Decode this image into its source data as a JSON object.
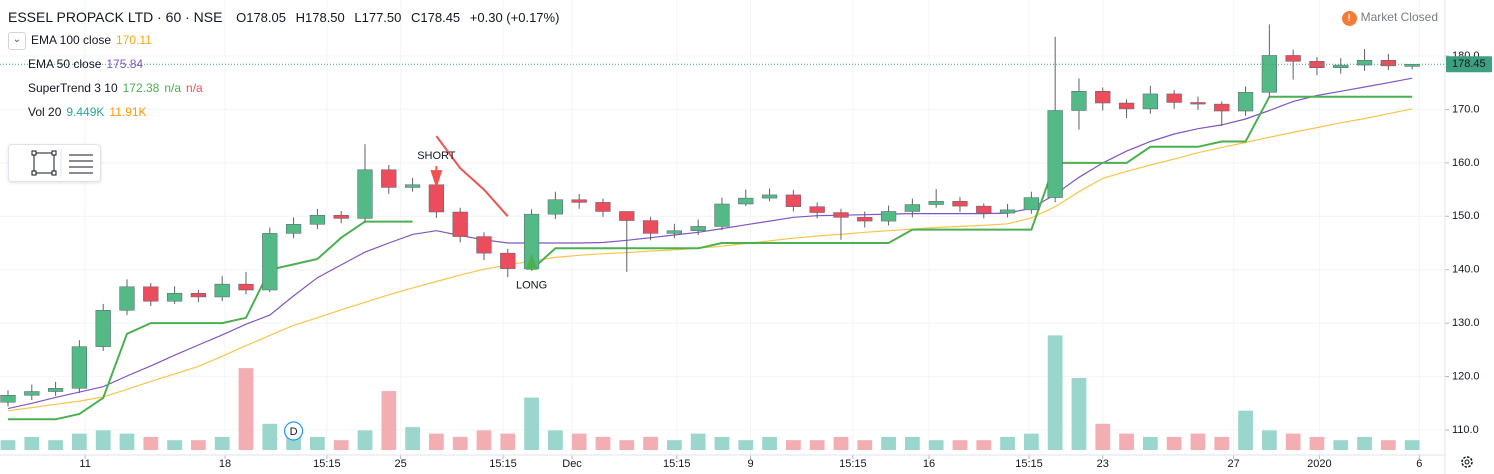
{
  "header": {
    "symbol": "ESSEL PROPACK LTD · 60 · NSE",
    "ohlc": [
      "O178.05",
      "H178.50",
      "L177.50",
      "C178.45"
    ],
    "change": "+0.30 (+0.17%)",
    "status": "Market Closed",
    "status_icon": "!"
  },
  "chart_data": {
    "type": "candlestick",
    "open": [
      115.2,
      116.5,
      117.2,
      117.8,
      125.6,
      132.4,
      136.8,
      134.1,
      135.6,
      134.9,
      137.3,
      136.2,
      146.8,
      148.5,
      150.2,
      149.6,
      158.7,
      155.4,
      155.9,
      150.8,
      146.2,
      143.1,
      140.2,
      150.4,
      153.1,
      152.6,
      150.9,
      149.2,
      146.8,
      147.3,
      148.1,
      152.3,
      153.4,
      154.0,
      151.8,
      150.7,
      149.8,
      149.1,
      150.9,
      152.2,
      152.8,
      151.9,
      150.6,
      151.2,
      153.5,
      169.8,
      173.4,
      171.2,
      170.1,
      172.9,
      171.3,
      171.0,
      169.7,
      173.2,
      180.1,
      179.0,
      177.8,
      178.3,
      179.2,
      178.05
    ],
    "high": [
      117.4,
      118.5,
      119.0,
      126.8,
      133.6,
      138.2,
      137.5,
      136.9,
      136.2,
      138.8,
      139.6,
      147.9,
      149.8,
      151.4,
      151.0,
      163.5,
      159.6,
      157.2,
      156.8,
      151.6,
      147.0,
      143.9,
      151.3,
      154.6,
      154.2,
      153.3,
      150.8,
      149.9,
      148.6,
      149.4,
      153.5,
      155.0,
      155.2,
      154.9,
      152.6,
      151.4,
      150.9,
      152.0,
      153.3,
      155.1,
      153.6,
      152.4,
      152.3,
      154.6,
      183.6,
      175.8,
      174.1,
      171.9,
      174.4,
      173.6,
      172.4,
      171.5,
      174.3,
      185.9,
      181.2,
      179.8,
      179.6,
      181.3,
      180.4,
      178.5
    ],
    "low": [
      114.4,
      115.6,
      116.4,
      116.9,
      124.8,
      131.5,
      133.2,
      133.6,
      133.9,
      134.1,
      135.4,
      135.8,
      145.9,
      147.6,
      148.7,
      148.9,
      154.2,
      154.6,
      149.7,
      145.1,
      141.8,
      138.6,
      139.8,
      149.5,
      151.4,
      149.9,
      139.6,
      145.5,
      145.9,
      146.5,
      147.4,
      151.9,
      152.8,
      150.9,
      149.6,
      145.6,
      147.9,
      148.3,
      149.8,
      151.6,
      150.8,
      149.6,
      149.8,
      150.5,
      152.6,
      166.2,
      169.8,
      168.4,
      169.2,
      170.1,
      169.9,
      166.9,
      168.8,
      172.4,
      175.6,
      176.4,
      176.7,
      177.2,
      177.4,
      177.5
    ],
    "close": [
      116.5,
      117.2,
      117.8,
      125.6,
      132.4,
      136.8,
      134.1,
      135.6,
      134.9,
      137.3,
      136.2,
      146.8,
      148.5,
      150.2,
      149.6,
      158.7,
      155.4,
      155.9,
      150.8,
      146.2,
      143.1,
      140.2,
      150.4,
      153.1,
      152.6,
      150.9,
      149.2,
      146.8,
      147.3,
      148.1,
      152.3,
      153.4,
      154.0,
      151.8,
      150.7,
      149.8,
      149.1,
      150.9,
      152.2,
      152.8,
      151.9,
      150.6,
      151.2,
      153.5,
      169.8,
      173.4,
      171.2,
      170.1,
      172.9,
      171.3,
      171.0,
      169.7,
      173.2,
      180.1,
      179.0,
      177.8,
      178.3,
      179.2,
      178.15,
      178.45
    ],
    "up_color": "#53b987",
    "down_color": "#eb4d5c",
    "wick_color": "#5d606b",
    "volume": {
      "name": "Vol 20",
      "values": [
        3,
        4,
        3,
        5,
        6,
        5,
        4,
        3,
        3,
        4,
        25,
        8,
        5,
        4,
        3,
        6,
        18,
        7,
        5,
        4,
        6,
        5,
        16,
        6,
        5,
        4,
        3,
        4,
        3,
        5,
        4,
        3,
        4,
        3,
        3,
        4,
        3,
        4,
        4,
        3,
        3,
        3,
        4,
        5,
        35,
        22,
        8,
        5,
        4,
        4,
        5,
        4,
        12,
        6,
        5,
        4,
        3,
        4,
        3,
        3
      ],
      "up_color": "#9bd6cd",
      "down_color": "#f3aeb3",
      "legend_values": [
        {
          "text": "9.449K",
          "color": "#26a69a"
        },
        {
          "text": "11.91K",
          "color": "#ff9800"
        }
      ]
    },
    "vlim": [
      0,
      40
    ],
    "series": [
      {
        "name": "EMA 100 close",
        "color": "#f7c54b",
        "legend_values": [
          {
            "text": "170.11",
            "color": "#f0a81c"
          }
        ],
        "values": [
          113.6,
          114.2,
          114.8,
          115.4,
          116.2,
          117.6,
          119.1,
          120.5,
          121.9,
          123.8,
          125.8,
          127.7,
          129.6,
          131,
          132.5,
          133.9,
          135.3,
          136.6,
          137.8,
          139,
          140.1,
          140.9,
          141.6,
          142.3,
          142.7,
          143,
          143.2,
          143.5,
          143.7,
          144,
          144.4,
          144.9,
          145.4,
          145.9,
          146.3,
          146.6,
          147,
          147.3,
          147.6,
          147.9,
          148.1,
          148.3,
          148.6,
          149.7,
          151.8,
          154.6,
          157.1,
          158.4,
          159.6,
          160.7,
          161.9,
          162.9,
          163.8,
          164.8,
          165.7,
          166.6,
          167.5,
          168.3,
          169.2,
          170.11
        ]
      },
      {
        "name": "EMA 50 close",
        "color": "#7e57c2",
        "legend_values": [
          {
            "text": "175.84",
            "color": "#7e57c2"
          }
        ],
        "values": [
          114,
          115,
          116.1,
          117.1,
          118.1,
          120.1,
          122,
          124,
          125.9,
          127.8,
          129.8,
          131.5,
          135.1,
          138.5,
          140.9,
          143.3,
          145,
          146.6,
          147.3,
          146.4,
          145.6,
          145,
          145,
          145,
          145,
          145.1,
          145.5,
          146,
          146.5,
          147,
          147.7,
          148.4,
          149.1,
          149.8,
          150.1,
          150.2,
          150.3,
          150.4,
          150.5,
          150.5,
          150.5,
          150.5,
          150.6,
          151.5,
          154.1,
          157.3,
          160,
          162.2,
          164,
          165.4,
          166.4,
          167.1,
          168.2,
          169.8,
          171.5,
          172.6,
          173.4,
          174.2,
          175,
          175.84
        ]
      },
      {
        "name": "SuperTrend 3 10",
        "color": "#4caf50",
        "down_color": "#ef5350",
        "legend_values": [
          {
            "text": "172.38",
            "color": "#4caf50"
          },
          {
            "text": "n/a",
            "color": "#4caf50"
          },
          {
            "text": "n/a",
            "color": "#ef5350"
          }
        ],
        "values": [
          112,
          112,
          112,
          113,
          116,
          128,
          130,
          130,
          130,
          130,
          131,
          140,
          141,
          142,
          146,
          149,
          149,
          149,
          null,
          null,
          null,
          null,
          140,
          144,
          144,
          144,
          144,
          144,
          144,
          144,
          145,
          145,
          145,
          145,
          145,
          145,
          145,
          145,
          147.5,
          147.5,
          147.5,
          147.5,
          147.5,
          147.5,
          160,
          160,
          160,
          160,
          163,
          163,
          163,
          164,
          164,
          172.38,
          172.38,
          172.38,
          172.38,
          172.38,
          172.38,
          172.38
        ],
        "down_values": [
          null,
          null,
          null,
          null,
          null,
          null,
          null,
          null,
          null,
          null,
          null,
          null,
          null,
          null,
          null,
          null,
          null,
          null,
          165,
          159,
          155,
          150,
          null,
          null,
          null,
          null,
          null,
          null,
          null,
          null,
          null,
          null,
          null,
          null,
          null,
          null,
          null,
          null,
          null,
          null,
          null,
          null,
          null,
          null,
          null,
          null,
          null,
          null,
          null,
          null,
          null,
          null,
          null,
          null,
          null,
          null,
          null,
          null,
          null,
          null
        ]
      }
    ],
    "signals": [
      {
        "label": "SHORT",
        "index": 18,
        "color": "#ef5350"
      },
      {
        "label": "LONG",
        "index": 22,
        "color": "#4caf50"
      }
    ],
    "dividend": {
      "label": "D",
      "index": 12
    },
    "last_label": "178.45",
    "last_color": "#3d9f7f",
    "xlim": [
      -0.336,
      60.38
    ],
    "xticks": [
      {
        "value": 3.24,
        "label": "11"
      },
      {
        "value": 9.12,
        "label": "18"
      },
      {
        "value": 13.4,
        "label": "15:15"
      },
      {
        "value": 16.5,
        "label": "25"
      },
      {
        "value": 20.8,
        "label": "15:15"
      },
      {
        "value": 23.7,
        "label": "Dec"
      },
      {
        "value": 28.1,
        "label": "15:15"
      },
      {
        "value": 31.2,
        "label": "9"
      },
      {
        "value": 35.5,
        "label": "15:15"
      },
      {
        "value": 38.7,
        "label": "16"
      },
      {
        "value": 42.9,
        "label": "15:15"
      },
      {
        "value": 46,
        "label": "23"
      },
      {
        "value": 51.5,
        "label": "27"
      },
      {
        "value": 55.1,
        "label": "2020"
      },
      {
        "value": 59.3,
        "label": "6"
      }
    ],
    "ylim": [
      105.32,
      190.48
    ],
    "yticks": [
      {
        "value": 110,
        "label": "110.0"
      },
      {
        "value": 120,
        "label": "120.0"
      },
      {
        "value": 130,
        "label": "130.0"
      },
      {
        "value": 140,
        "label": "140.0"
      },
      {
        "value": 150,
        "label": "150.0"
      },
      {
        "value": 160,
        "label": "160.0"
      },
      {
        "value": 170,
        "label": "170.0"
      },
      {
        "value": 180,
        "label": "180.0"
      }
    ],
    "grid": true
  }
}
